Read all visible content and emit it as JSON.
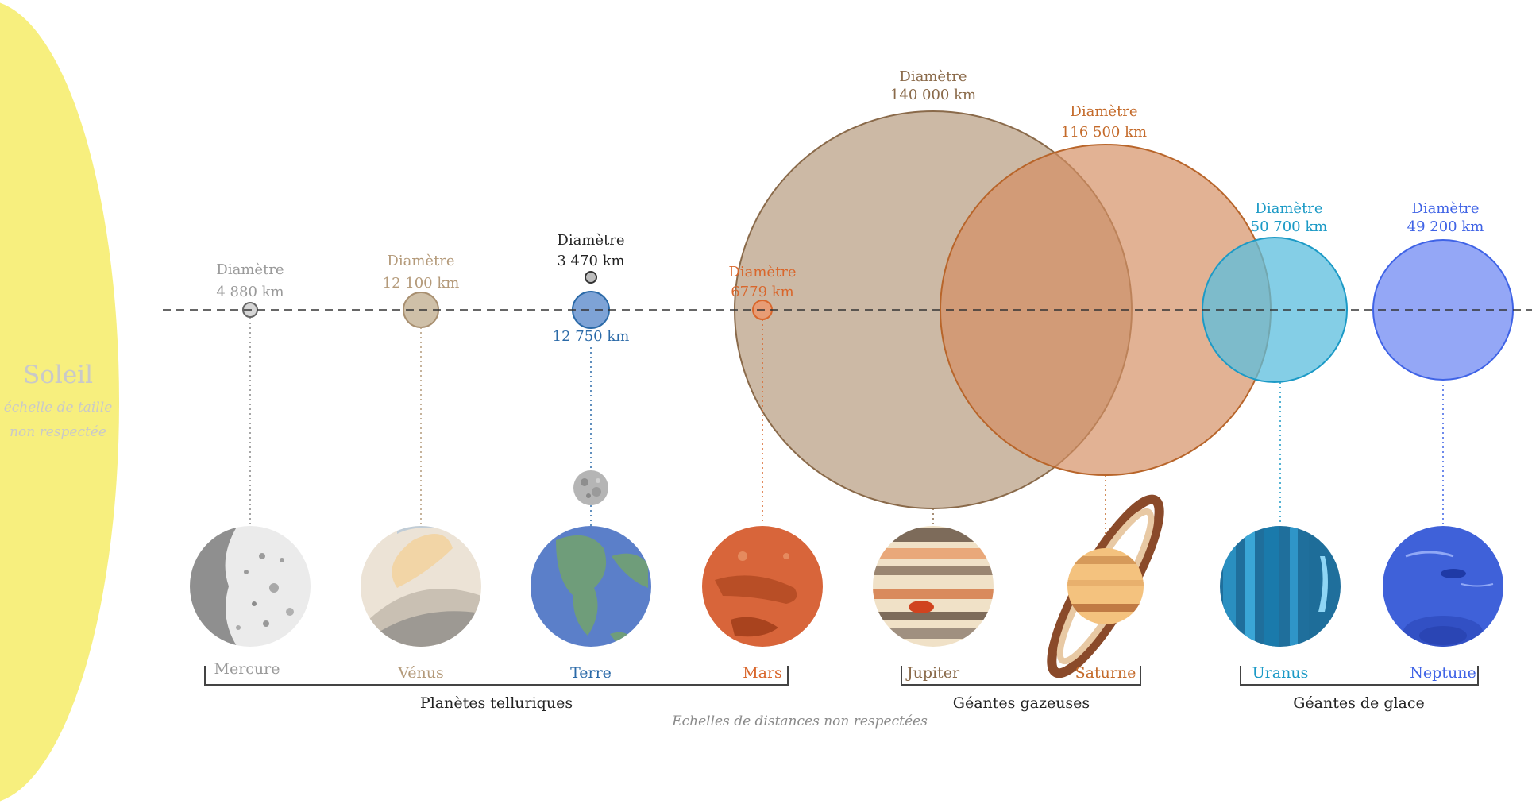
{
  "sun": {
    "name": "Soleil",
    "note_line1": "échelle de taille",
    "note_line2": "non respectée",
    "color": "#f7ef7e",
    "text_color": "#c9c9c9"
  },
  "diameter_label": "Diamètre",
  "planets": [
    {
      "id": "mercury",
      "name": "Mercure",
      "diameter": "4 880 km",
      "diameter_km": 4880,
      "color": "#9a9a9a",
      "fill": "#d6d6d6",
      "icon": "mercury-icon"
    },
    {
      "id": "venus",
      "name": "Vénus",
      "diameter": "12 100 km",
      "diameter_km": 12100,
      "color": "#b49a7a",
      "fill": "#cfc0a8",
      "icon": "venus-icon"
    },
    {
      "id": "earth",
      "name": "Terre",
      "diameter": "12 750 km",
      "diameter_km": 12750,
      "color": "#2b6aa8",
      "fill": "#7ea3d6",
      "icon": "earth-icon"
    },
    {
      "id": "mars",
      "name": "Mars",
      "diameter": "6779 km",
      "diameter_km": 6779,
      "color": "#d9662b",
      "fill": "#e79c75",
      "icon": "mars-icon"
    },
    {
      "id": "jupiter",
      "name": "Jupiter",
      "diameter": "140 000 km",
      "diameter_km": 140000,
      "color": "#8a6a4a",
      "fill": "#c5b09a",
      "icon": "jupiter-icon"
    },
    {
      "id": "saturn",
      "name": "Saturne",
      "diameter": "116 500 km",
      "diameter_km": 116500,
      "color": "#c46a2a",
      "fill": "#d99e7a",
      "icon": "saturn-icon"
    },
    {
      "id": "uranus",
      "name": "Uranus",
      "diameter": "50 700 km",
      "diameter_km": 50700,
      "color": "#1c9ac6",
      "fill": "#6cc3e0",
      "icon": "uranus-icon"
    },
    {
      "id": "neptune",
      "name": "Neptune",
      "diameter": "49 200 km",
      "diameter_km": 49200,
      "color": "#3f63e6",
      "fill": "#94a7f6",
      "icon": "neptune-icon"
    }
  ],
  "moon": {
    "diameter": "3 470 km",
    "diameter_km": 3470,
    "color": "#333333"
  },
  "groups": [
    {
      "name": "Planètes telluriques"
    },
    {
      "name": "Géantes gazeuses"
    },
    {
      "name": "Géantes de glace"
    }
  ],
  "footnote": "Echelles de distances non respectées"
}
